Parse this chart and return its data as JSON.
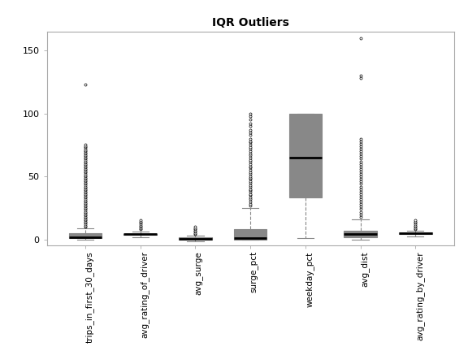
{
  "title": "IQR Outliers",
  "categories": [
    "trips_in_first_30_days",
    "avg_rating_of_driver",
    "avg_surge",
    "surge_pct",
    "weekday_pct",
    "avg_dist",
    "avg_rating_by_driver"
  ],
  "ylim": [
    -5,
    165
  ],
  "yticks": [
    0,
    50,
    100,
    150
  ],
  "background_color": "white",
  "boxes": [
    {
      "q1": 1,
      "median": 2,
      "q3": 5,
      "whislo": 0,
      "whishi": 9,
      "fliers": [
        10,
        11,
        12,
        13,
        14,
        15,
        16,
        17,
        18,
        19,
        20,
        21,
        22,
        23,
        24,
        25,
        26,
        27,
        28,
        29,
        30,
        31,
        32,
        33,
        34,
        35,
        36,
        37,
        38,
        39,
        40,
        41,
        42,
        43,
        44,
        45,
        46,
        47,
        48,
        49,
        50,
        51,
        52,
        53,
        54,
        55,
        56,
        57,
        58,
        59,
        60,
        61,
        62,
        63,
        64,
        65,
        66,
        67,
        68,
        69,
        70,
        71,
        72,
        73,
        74,
        75,
        123
      ]
    },
    {
      "q1": 3.5,
      "median": 4.0,
      "q3": 4.5,
      "whislo": 2.0,
      "whishi": 6.0,
      "fliers": [
        8,
        9,
        10,
        11,
        12,
        13,
        14,
        15
      ]
    },
    {
      "q1": -0.5,
      "median": 0.5,
      "q3": 1.5,
      "whislo": -1.5,
      "whishi": 3.0,
      "fliers": [
        4,
        5,
        6,
        7,
        8,
        9,
        10
      ]
    },
    {
      "q1": 0,
      "median": 1,
      "q3": 8,
      "whislo": 0,
      "whishi": 25,
      "fliers": [
        27,
        28,
        30,
        32,
        33,
        35,
        36,
        38,
        39,
        40,
        42,
        43,
        45,
        46,
        48,
        49,
        50,
        52,
        53,
        55,
        57,
        58,
        60,
        62,
        63,
        65,
        67,
        68,
        70,
        72,
        73,
        75,
        77,
        78,
        80,
        83,
        85,
        87,
        90,
        92,
        95,
        98,
        100
      ]
    },
    {
      "q1": 33,
      "median": 65,
      "q3": 100,
      "whislo": 1,
      "whishi": 100,
      "fliers": []
    },
    {
      "q1": 2,
      "median": 4,
      "q3": 7,
      "whislo": 0,
      "whishi": 16,
      "fliers": [
        18,
        20,
        22,
        24,
        26,
        28,
        30,
        32,
        34,
        36,
        38,
        40,
        42,
        44,
        46,
        48,
        50,
        52,
        54,
        56,
        58,
        60,
        62,
        64,
        66,
        68,
        70,
        72,
        74,
        76,
        78,
        80,
        128,
        130,
        160
      ]
    },
    {
      "q1": 4,
      "median": 5,
      "q3": 5.5,
      "whislo": 2.5,
      "whishi": 7,
      "fliers": [
        8,
        9,
        10,
        11,
        12,
        13,
        14,
        15
      ]
    }
  ]
}
